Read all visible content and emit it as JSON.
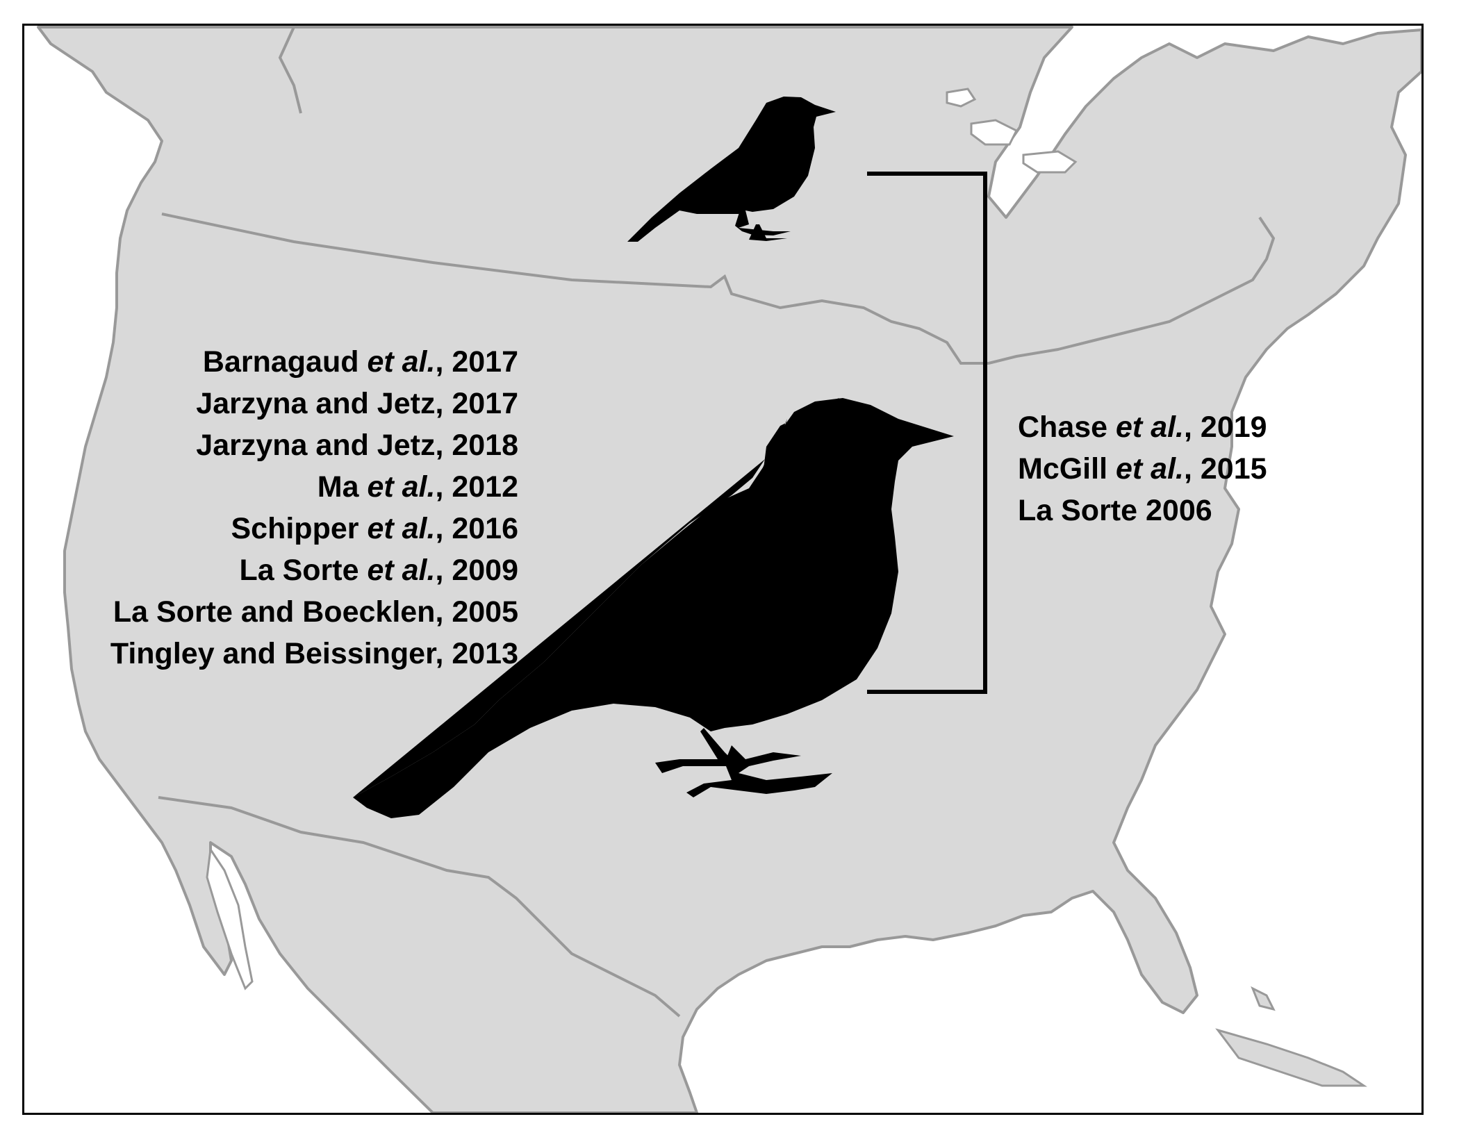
{
  "map": {
    "land_color": "#d9d9d9",
    "border_color": "#999999",
    "silhouette_color": "#000000",
    "frame_color": "#000000"
  },
  "left_references": [
    {
      "pre": "Barnagaud ",
      "ital": "et al.",
      "post": ", 2017"
    },
    {
      "pre": "Jarzyna and Jetz, 2017",
      "ital": "",
      "post": ""
    },
    {
      "pre": "Jarzyna and Jetz, 2018",
      "ital": "",
      "post": ""
    },
    {
      "pre": "Ma ",
      "ital": "et al.",
      "post": ", 2012"
    },
    {
      "pre": "Schipper ",
      "ital": "et al.",
      "post": ", 2016"
    },
    {
      "pre": "La Sorte ",
      "ital": "et al.",
      "post": ", 2009"
    },
    {
      "pre": "La Sorte and Boecklen, 2005",
      "ital": "",
      "post": ""
    },
    {
      "pre": "Tingley and Beissinger, 2013",
      "ital": "",
      "post": ""
    }
  ],
  "right_references": [
    {
      "pre": "Chase ",
      "ital": "et al.",
      "post": ", 2019"
    },
    {
      "pre": "McGill ",
      "ital": "et al.",
      "post": ", 2015"
    },
    {
      "pre": "La Sorte 2006",
      "ital": "",
      "post": ""
    }
  ]
}
